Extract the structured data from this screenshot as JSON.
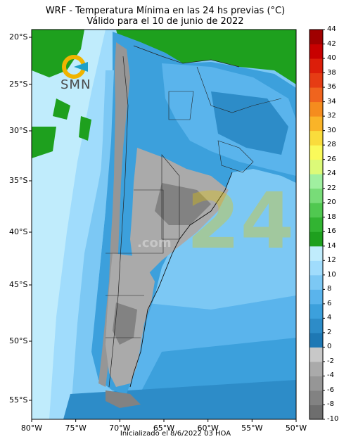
{
  "header": {
    "title_line1": "WRF - Temperatura Mínima en las 24 hs previas (°C)",
    "title_line2": "Válido para el 10 de junio de 2022"
  },
  "footer": {
    "text": "Inicializado el 8/6/2022 03 HOA"
  },
  "logo": {
    "text": "SMN",
    "icon": "smn-logo-icon"
  },
  "watermark": {
    "big": "24",
    "small": ".com"
  },
  "chart_data": {
    "type": "heatmap",
    "variable": "Temperatura Mínima (°C)",
    "xlabels": [
      "80°W",
      "75°W",
      "70°W",
      "65°W",
      "60°W",
      "55°W",
      "50°W"
    ],
    "ylabels": [
      "20°S",
      "25°S",
      "30°S",
      "35°S",
      "40°S",
      "45°S",
      "50°S",
      "55°S"
    ],
    "xlim": [
      -80,
      -50
    ],
    "ylim": [
      -57,
      -19
    ],
    "colorbar": {
      "levels": [
        "-10",
        "-8",
        "-6",
        "-4",
        "-2",
        "0",
        "2",
        "4",
        "6",
        "8",
        "10",
        "12",
        "14",
        "16",
        "18",
        "20",
        "22",
        "24",
        "26",
        "28",
        "30",
        "32",
        "34",
        "36",
        "38",
        "40",
        "42",
        "44"
      ],
      "colors": [
        "#6e6e6e",
        "#828282",
        "#969696",
        "#aaaaaa",
        "#c8c8c8",
        "#1e78b4",
        "#2d8cc8",
        "#3ca0dc",
        "#5ab4ec",
        "#7cc8f4",
        "#a0dcfc",
        "#c0ecfc",
        "#1ea01e",
        "#32b432",
        "#50c850",
        "#78dc78",
        "#a0f0a0",
        "#dcfa78",
        "#fafa5a",
        "#fadc3c",
        "#fab428",
        "#f58c1e",
        "#f0641e",
        "#e63c14",
        "#dc1e0a",
        "#c80000",
        "#a00000"
      ]
    },
    "regions": [
      {
        "name": "southern-chile-andes",
        "range": "-10 to 0"
      },
      {
        "name": "patagonia-interior",
        "range": "-6 to 0"
      },
      {
        "name": "pampas-interior",
        "range": "-4 to 0"
      },
      {
        "name": "northern-argentina",
        "range": "2 to 10"
      },
      {
        "name": "pacific-ocean-north",
        "range": "12 to 16"
      },
      {
        "name": "atlantic-ocean-south",
        "range": "2 to 8"
      },
      {
        "name": "bolivia-brazil-paraguay-north",
        "range": "14 to 20"
      }
    ]
  }
}
